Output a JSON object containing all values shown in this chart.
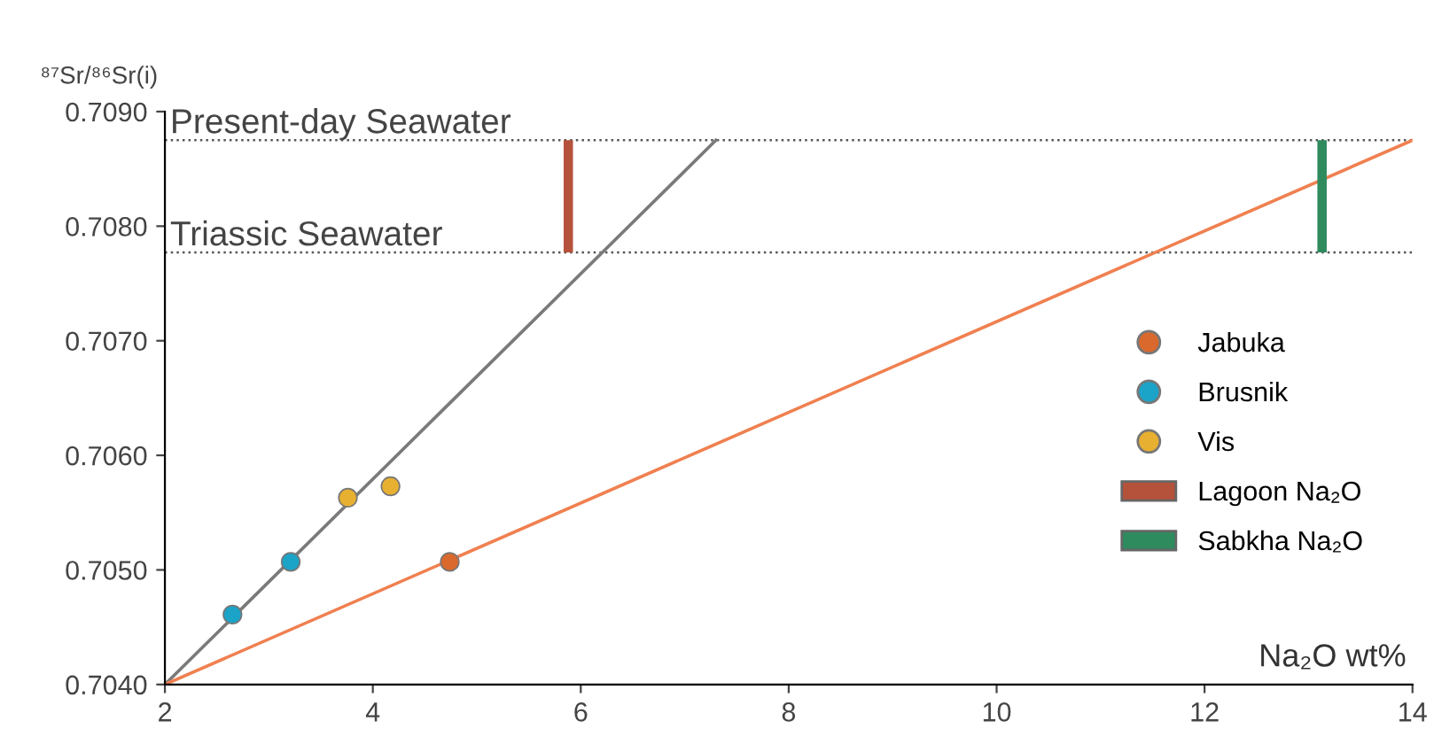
{
  "chart_data": {
    "type": "scatter",
    "xlabel": "Na₂O wt%",
    "ylabel": "⁸⁷Sr/⁸⁶Sr(i)",
    "xlim": [
      2,
      14
    ],
    "xticks": [
      2,
      4,
      6,
      8,
      10,
      12,
      14
    ],
    "ylim": [
      0.704,
      0.709
    ],
    "yticks": [
      {
        "value": 0.704,
        "label": "0.7040"
      },
      {
        "value": 0.705,
        "label": "0.7050"
      },
      {
        "value": 0.706,
        "label": "0.7060"
      },
      {
        "value": 0.707,
        "label": "0.7070"
      },
      {
        "value": 0.708,
        "label": "0.7080"
      },
      {
        "value": 0.709,
        "label": "0.7090"
      }
    ],
    "grid": false,
    "legend": "right",
    "ref_lines": [
      {
        "axis": "y",
        "value": 0.70875,
        "label": "Present-day Seawater",
        "color": "#555555",
        "line_style": "dotted"
      },
      {
        "axis": "y",
        "value": 0.70777,
        "label": "Triassic Seawater",
        "color": "#555555",
        "line_style": "dotted"
      }
    ],
    "series": [
      {
        "type": "line",
        "color": "#7a7a7a",
        "x": [
          2,
          7.3
        ],
        "values": [
          0.704,
          0.70875
        ]
      },
      {
        "type": "line",
        "color": "#f08050",
        "x": [
          2,
          14
        ],
        "values": [
          0.704,
          0.70875
        ]
      },
      {
        "name": "Jabuka",
        "marker": "circle",
        "color": "#d9692c",
        "x": [
          4.74
        ],
        "values": [
          0.70507
        ]
      },
      {
        "name": "Brusnik",
        "marker": "circle",
        "color": "#1ca3c8",
        "x": [
          2.65,
          3.21
        ],
        "values": [
          0.70461,
          0.70507
        ]
      },
      {
        "name": "Vis",
        "marker": "circle",
        "color": "#e8b030",
        "x": [
          3.76,
          4.17
        ],
        "values": [
          0.70563,
          0.70573
        ]
      },
      {
        "name": "Lagoon Na₂O",
        "type": "bar",
        "color": "#b5523b",
        "x": [
          5.88
        ],
        "base": [
          0.70777
        ],
        "values": [
          0.00098
        ]
      },
      {
        "name": "Sabkha Na₂O",
        "type": "bar",
        "color": "#2e8b5e",
        "x": [
          13.13
        ],
        "base": [
          0.70777
        ],
        "values": [
          0.00098
        ]
      }
    ]
  }
}
